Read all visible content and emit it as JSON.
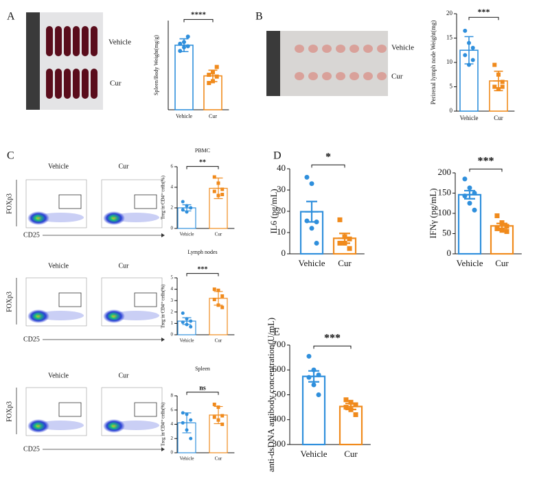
{
  "panel_labels": [
    "A",
    "B",
    "C",
    "D",
    "E"
  ],
  "photo_A_labels": [
    "Vehicle",
    "Cur"
  ],
  "photo_B_labels": [
    "Vehicle",
    "Cur"
  ],
  "flow_titles": [
    "Vehicle",
    "Cur"
  ],
  "flow_y_label": "FOXp3",
  "flow_x_label": "CD25",
  "chart_data": [
    {
      "type": "bar",
      "y_label": "Spleen/Body Weight(mg/g)",
      "categories": [
        "Vehicle",
        "Cur"
      ],
      "values": [
        18.1,
        9.5
      ],
      "errors": [
        1.8,
        1.6
      ],
      "points": [
        [
          16.5,
          17.5,
          17.8,
          18.5,
          19,
          20.5
        ],
        [
          7.5,
          8,
          9.3,
          9.8,
          10.5,
          12
        ]
      ],
      "colors": [
        "#2f8fdc",
        "#f08a1c"
      ],
      "ylim": [
        0,
        25
      ],
      "significance": "****"
    },
    {
      "type": "bar",
      "y_label": "Perirenal lymph node Weight(mg)",
      "categories": [
        "Vehicle",
        "Cur"
      ],
      "values": [
        12.5,
        6.2
      ],
      "errors": [
        2.8,
        2
      ],
      "points": [
        [
          16.5,
          14,
          13,
          11.5,
          9.5,
          10.5
        ],
        [
          9.5,
          7.5,
          6,
          5,
          4.5,
          5
        ]
      ],
      "colors": [
        "#2f8fdc",
        "#f08a1c"
      ],
      "ylim": [
        0,
        20
      ],
      "yticks": [
        0,
        5,
        10,
        15,
        20
      ],
      "significance": "***"
    },
    {
      "type": "bar",
      "title": "PBMC",
      "y_label": "Treg in CD4⁺ cells(%)",
      "categories": [
        "Vehicle",
        "Cur"
      ],
      "values": [
        2.0,
        3.9
      ],
      "errors": [
        0.3,
        1.0
      ],
      "points": [
        [
          2.6,
          2.2,
          2.0,
          1.8,
          1.6,
          2.0
        ],
        [
          5.0,
          4.4,
          3.8,
          3.6,
          3.2,
          3.3
        ]
      ],
      "colors": [
        "#2f8fdc",
        "#f08a1c"
      ],
      "ylim": [
        0,
        6
      ],
      "yticks": [
        0,
        2,
        4,
        6
      ],
      "significance": "**"
    },
    {
      "type": "bar",
      "title": "Lymph nodes",
      "y_label": "Treg in CD4⁺ cells(%)",
      "categories": [
        "Vehicle",
        "Cur"
      ],
      "values": [
        1.2,
        3.2
      ],
      "errors": [
        0.3,
        0.6
      ],
      "points": [
        [
          1.9,
          1.4,
          1.2,
          1.1,
          0.9,
          0.7
        ],
        [
          4.0,
          3.9,
          3.4,
          3.1,
          2.6,
          2.4
        ]
      ],
      "colors": [
        "#2f8fdc",
        "#f08a1c"
      ],
      "ylim": [
        0,
        5
      ],
      "yticks": [
        0,
        1,
        2,
        3,
        4,
        5
      ],
      "significance": "***"
    },
    {
      "type": "bar",
      "title": "Spleen",
      "y_label": "Treg in CD4⁺ cells(%)",
      "categories": [
        "Vehicle",
        "Cur"
      ],
      "values": [
        4.2,
        5.3
      ],
      "errors": [
        1.4,
        1.2
      ],
      "points": [
        [
          5.6,
          5.4,
          4.6,
          4.2,
          3.2,
          2.0
        ],
        [
          6.8,
          6.4,
          5.2,
          5.0,
          4.6,
          4.0
        ]
      ],
      "colors": [
        "#2f8fdc",
        "#f08a1c"
      ],
      "ylim": [
        0,
        8
      ],
      "yticks": [
        0,
        2,
        4,
        6,
        8
      ],
      "significance": "ns"
    },
    {
      "type": "bar",
      "y_label": "IL6 (pg/mL)",
      "categories": [
        "Vehicle",
        "Cur"
      ],
      "values": [
        19.8,
        7.3
      ],
      "errors": [
        4.8,
        2.3
      ],
      "points": [
        [
          36,
          33,
          15,
          15.5,
          12,
          5
        ],
        [
          16,
          8,
          7,
          5,
          5,
          2.5
        ]
      ],
      "colors": [
        "#2f8fdc",
        "#f08a1c"
      ],
      "ylim": [
        0,
        40
      ],
      "yticks": [
        0,
        10,
        20,
        30,
        40
      ],
      "significance": "*"
    },
    {
      "type": "bar",
      "y_label": "IFNγ (pg/mL)",
      "categories": [
        "Vehicle",
        "Cur"
      ],
      "values": [
        146,
        69
      ],
      "errors": [
        10,
        6
      ],
      "points": [
        [
          185,
          163,
          150,
          143,
          125,
          108
        ],
        [
          94,
          77,
          68,
          62,
          58,
          55
        ]
      ],
      "colors": [
        "#2f8fdc",
        "#f08a1c"
      ],
      "ylim": [
        0,
        200
      ],
      "yticks": [
        0,
        50,
        100,
        150,
        200
      ],
      "significance": "***"
    },
    {
      "type": "bar",
      "y_label": "anti-dsDNA antibody concentration(U/mL)",
      "categories": [
        "Vehicle",
        "Cur"
      ],
      "values": [
        574,
        453
      ],
      "errors": [
        22,
        12
      ],
      "points": [
        [
          655,
          600,
          580,
          570,
          540,
          500
        ],
        [
          480,
          470,
          460,
          450,
          440,
          420
        ]
      ],
      "colors": [
        "#2f8fdc",
        "#f08a1c"
      ],
      "ylim": [
        300,
        700
      ],
      "yticks": [
        300,
        400,
        500,
        600,
        700
      ],
      "significance": "***"
    }
  ]
}
